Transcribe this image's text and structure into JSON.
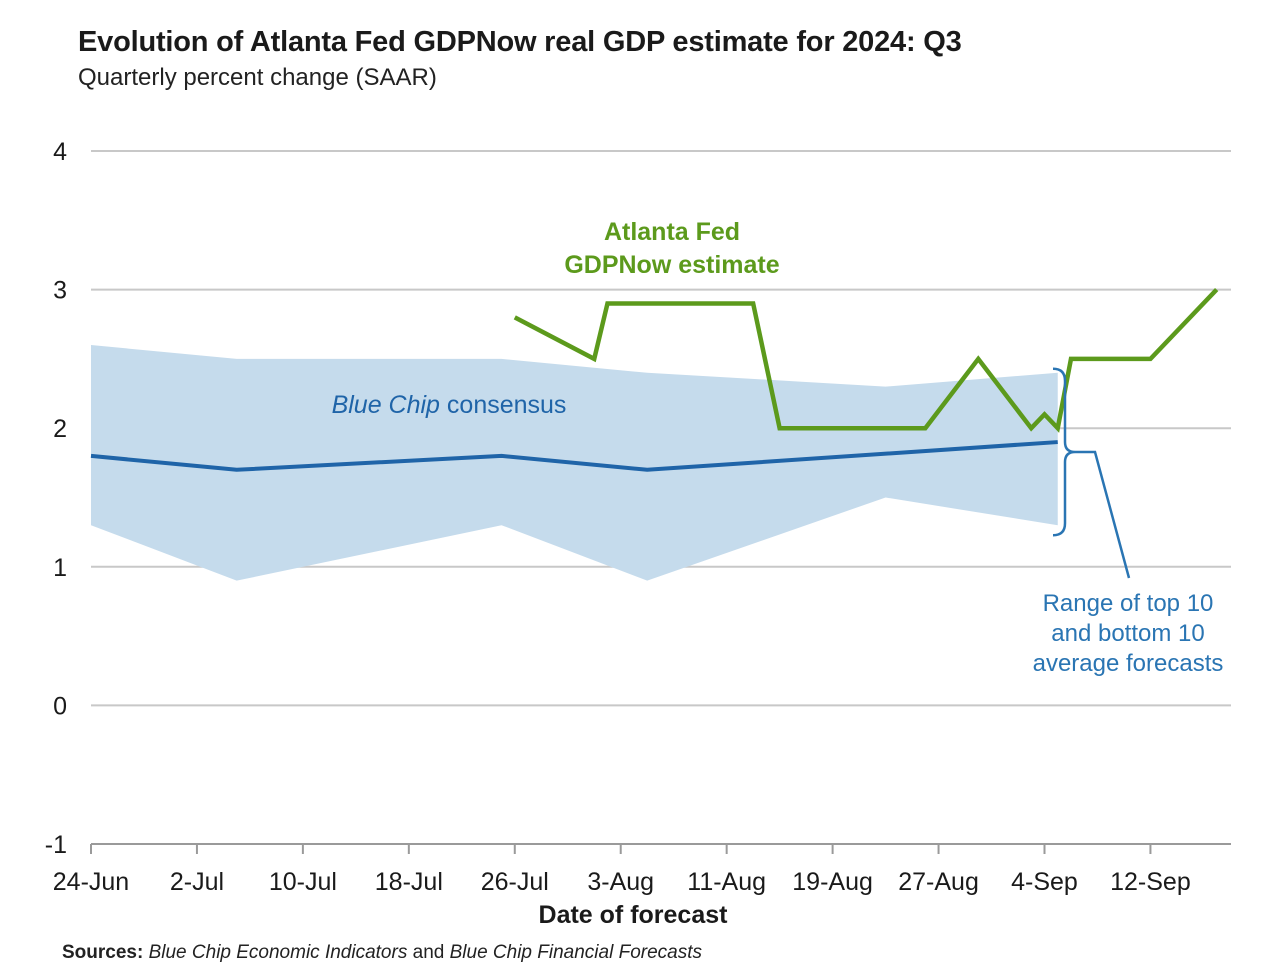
{
  "chart_data": {
    "type": "line",
    "title": "Evolution of Atlanta Fed GDPNow real GDP estimate for 2024: Q3",
    "subtitle": "Quarterly percent change (SAAR)",
    "xlabel": "Date of forecast",
    "ylabel": "",
    "ylim": [
      -1,
      4
    ],
    "yticks": [
      -1,
      0,
      1,
      2,
      3,
      4
    ],
    "grid": true,
    "x_domain": [
      0,
      86
    ],
    "x_ticks": [
      {
        "label": "24-Jun",
        "day": 0
      },
      {
        "label": "2-Jul",
        "day": 8
      },
      {
        "label": "10-Jul",
        "day": 16
      },
      {
        "label": "18-Jul",
        "day": 24
      },
      {
        "label": "26-Jul",
        "day": 32
      },
      {
        "label": "3-Aug",
        "day": 40
      },
      {
        "label": "11-Aug",
        "day": 48
      },
      {
        "label": "19-Aug",
        "day": 56
      },
      {
        "label": "27-Aug",
        "day": 64
      },
      {
        "label": "4-Sep",
        "day": 72
      },
      {
        "label": "12-Sep",
        "day": 80
      }
    ],
    "series": [
      {
        "name": "Atlanta Fed GDPNow estimate",
        "label_lines": [
          "Atlanta Fed",
          "GDPNow estimate"
        ],
        "color": "#5c9a1c",
        "points": [
          {
            "day": 32,
            "value": 2.8
          },
          {
            "day": 38,
            "value": 2.5
          },
          {
            "day": 39,
            "value": 2.9
          },
          {
            "day": 50,
            "value": 2.9
          },
          {
            "day": 52,
            "value": 2.0
          },
          {
            "day": 63,
            "value": 2.0
          },
          {
            "day": 67,
            "value": 2.5
          },
          {
            "day": 71,
            "value": 2.0
          },
          {
            "day": 72,
            "value": 2.1
          },
          {
            "day": 73,
            "value": 2.0
          },
          {
            "day": 74,
            "value": 2.5
          },
          {
            "day": 80,
            "value": 2.5
          },
          {
            "day": 85,
            "value": 3.0
          }
        ]
      },
      {
        "name": "Blue Chip consensus",
        "label_italic": "Blue Chip",
        "label_rest": " consensus",
        "color": "#1f64a8",
        "points": [
          {
            "day": 0,
            "value": 1.8
          },
          {
            "day": 11,
            "value": 1.7
          },
          {
            "day": 31,
            "value": 1.8
          },
          {
            "day": 42,
            "value": 1.7
          },
          {
            "day": 73,
            "value": 1.9
          }
        ]
      }
    ],
    "band": {
      "name": "Range of top 10 and bottom 10 average forecasts",
      "label_lines": [
        "Range of top 10",
        "and bottom 10",
        "average forecasts"
      ],
      "color": "#c5dbec",
      "annotation_color": "#2a75b3",
      "upper": [
        {
          "day": 0,
          "value": 2.6
        },
        {
          "day": 11,
          "value": 2.5
        },
        {
          "day": 31,
          "value": 2.5
        },
        {
          "day": 42,
          "value": 2.4
        },
        {
          "day": 60,
          "value": 2.3
        },
        {
          "day": 73,
          "value": 2.4
        }
      ],
      "lower": [
        {
          "day": 0,
          "value": 1.3
        },
        {
          "day": 11,
          "value": 0.9
        },
        {
          "day": 31,
          "value": 1.3
        },
        {
          "day": 42,
          "value": 0.9
        },
        {
          "day": 60,
          "value": 1.5
        },
        {
          "day": 73,
          "value": 1.3
        }
      ]
    }
  },
  "sources": {
    "label": "Sources:",
    "item1": "Blue Chip Economic Indicators",
    "connector": " and ",
    "item2": "Blue Chip Financial Forecasts"
  }
}
